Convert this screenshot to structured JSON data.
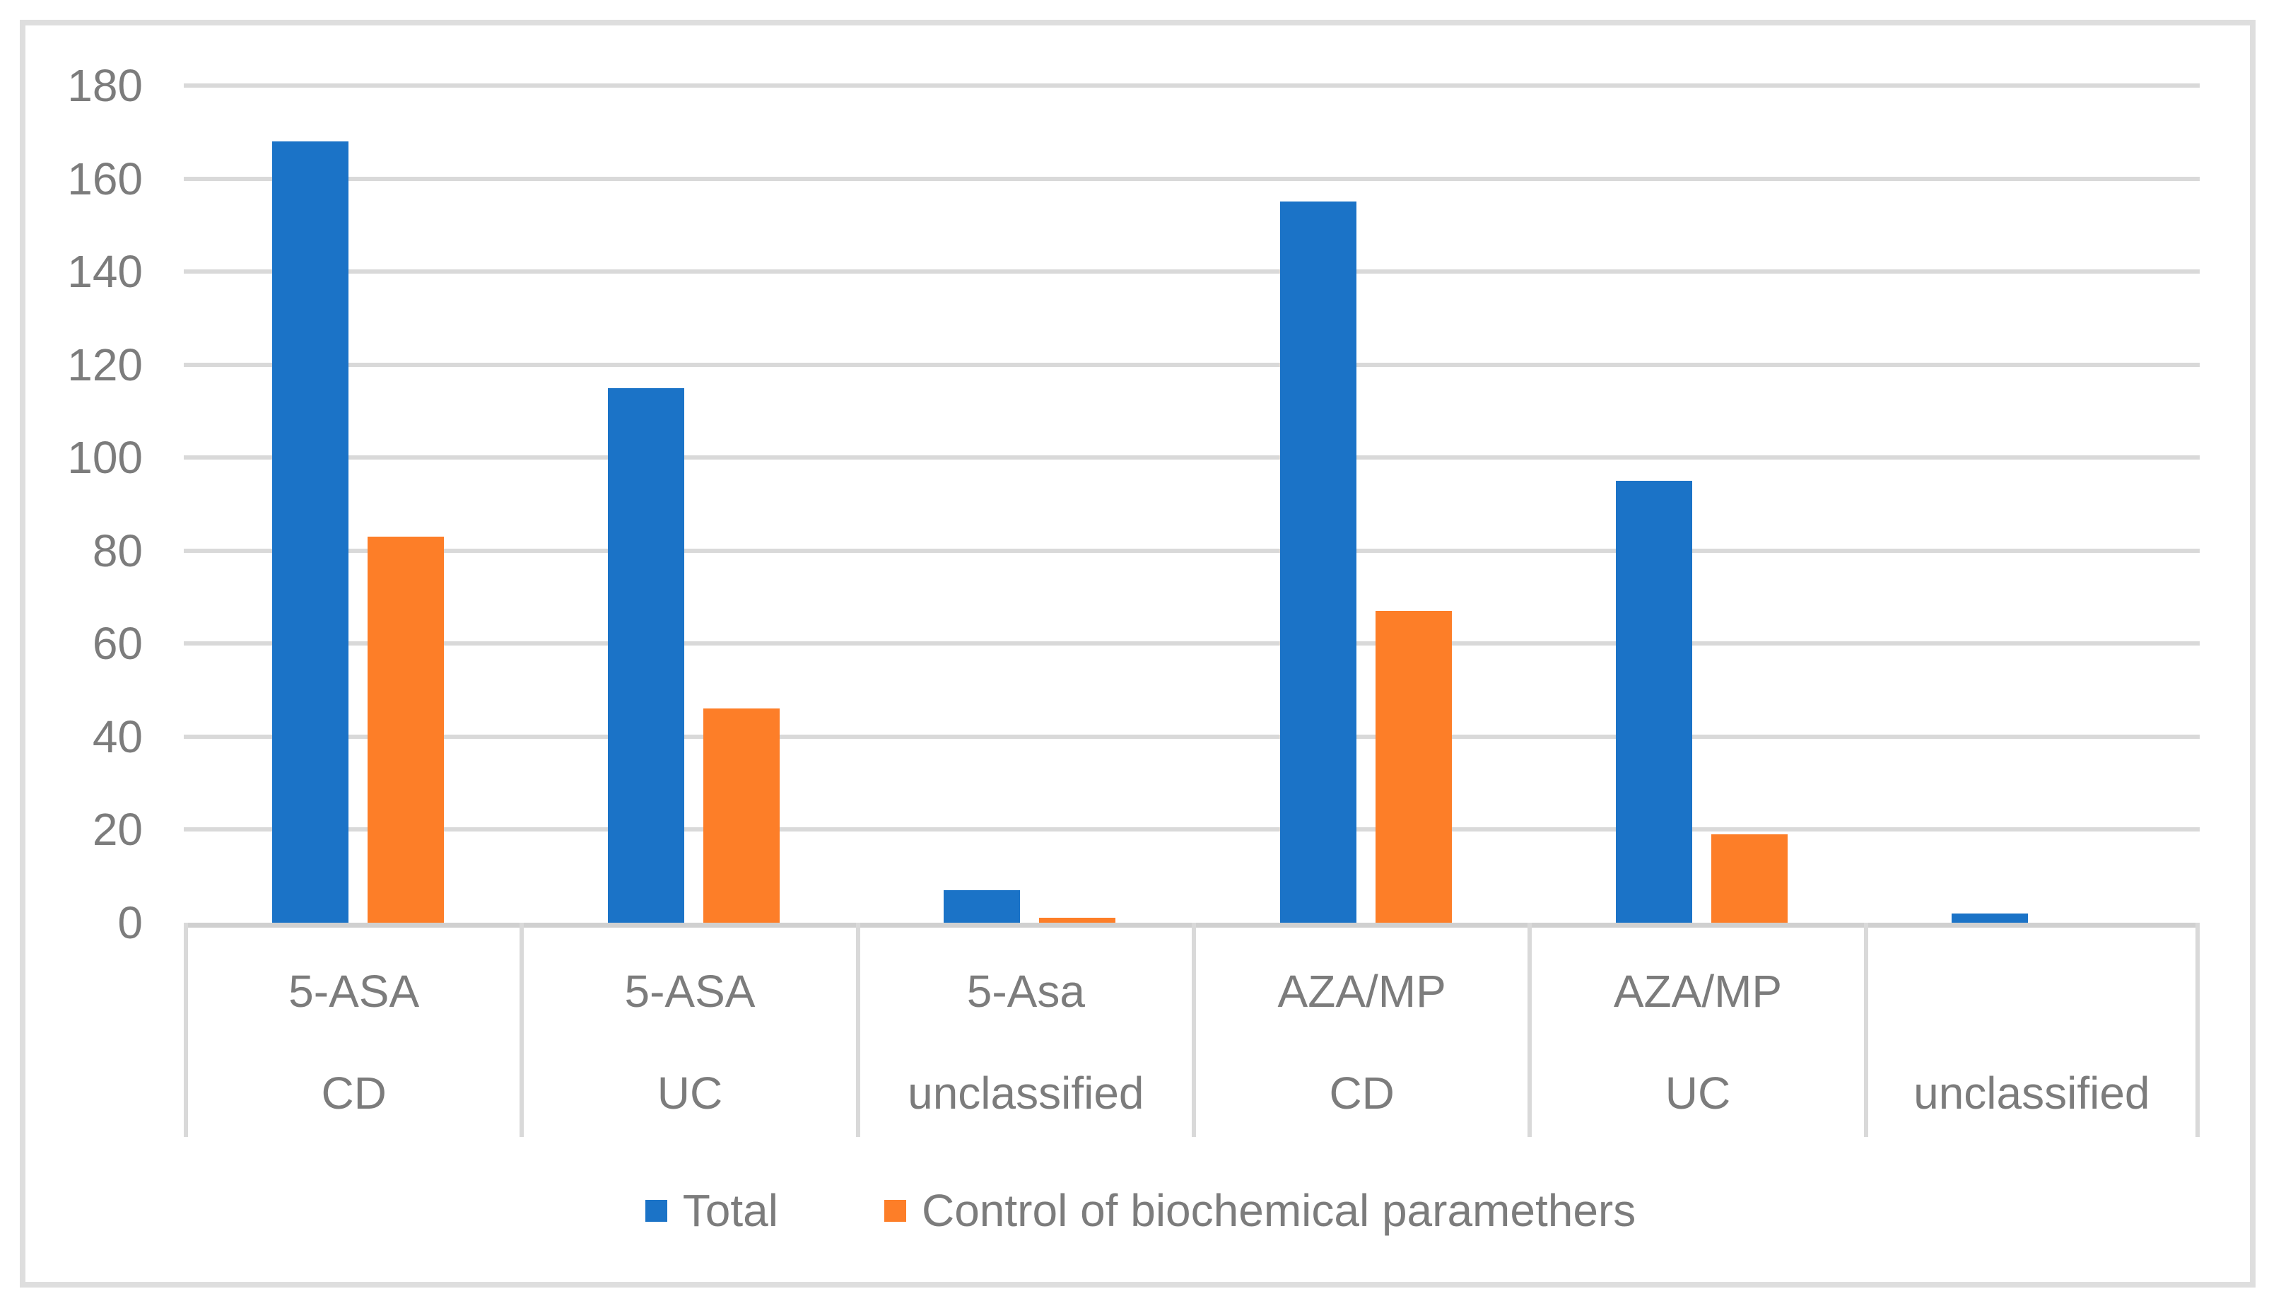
{
  "chart_data": {
    "type": "bar",
    "title": "",
    "xlabel": "",
    "ylabel": "",
    "categories": [
      {
        "line1": "5-ASA",
        "line2": "CD"
      },
      {
        "line1": "5-ASA",
        "line2": "UC"
      },
      {
        "line1": "5-Asa",
        "line2": "unclassified"
      },
      {
        "line1": "AZA/MP",
        "line2": "CD"
      },
      {
        "line1": "AZA/MP",
        "line2": "UC"
      },
      {
        "line1": "",
        "line2": "unclassified"
      }
    ],
    "series": [
      {
        "key": "total",
        "name": "Total",
        "color": "#1B73C7",
        "values": [
          168,
          115,
          7,
          155,
          95,
          2
        ]
      },
      {
        "key": "control",
        "name": "Control of biochemical paramethers",
        "color": "#FD7E28",
        "values": [
          83,
          46,
          1,
          67,
          19,
          0
        ]
      }
    ],
    "ylim": [
      0,
      180
    ],
    "yticks": [
      0,
      20,
      40,
      60,
      80,
      100,
      120,
      140,
      160,
      180
    ],
    "grid": "horizontal",
    "legend_position": "bottom"
  },
  "styles": {
    "background": "#FFFFFF",
    "frame_border_color": "#DEDEDE",
    "grid_color": "#D9D9D9",
    "axis_line_color": "#D0D0D0",
    "divider_color": "#D9D9D9",
    "text_color": "#7C7C7C"
  }
}
